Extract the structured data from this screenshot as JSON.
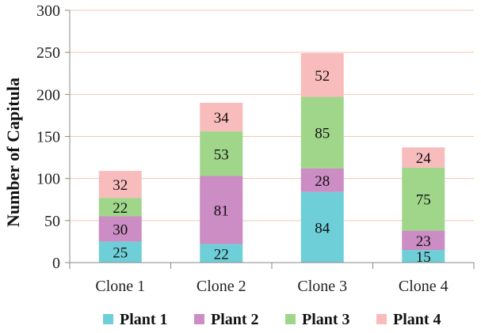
{
  "chart_data": {
    "type": "bar",
    "stacked": true,
    "categories": [
      "Clone 1",
      "Clone 2",
      "Clone 3",
      "Clone 4"
    ],
    "series": [
      {
        "name": "Plant 1",
        "values": [
          25,
          22,
          84,
          15
        ],
        "color": "#6fcfd8"
      },
      {
        "name": "Plant 2",
        "values": [
          30,
          81,
          28,
          23
        ],
        "color": "#cc8cc4"
      },
      {
        "name": "Plant 3",
        "values": [
          22,
          53,
          85,
          75
        ],
        "color": "#9fd68a"
      },
      {
        "name": "Plant 4",
        "values": [
          32,
          34,
          52,
          24
        ],
        "color": "#f8bcbc"
      }
    ],
    "ylabel": "Number of Capitula",
    "xlabel": "",
    "ylim": [
      0,
      300
    ],
    "yticks": [
      0,
      50,
      100,
      150,
      200,
      250,
      300
    ],
    "grid": true,
    "gridColor": "#f2c9b0",
    "legend": "bottom"
  }
}
